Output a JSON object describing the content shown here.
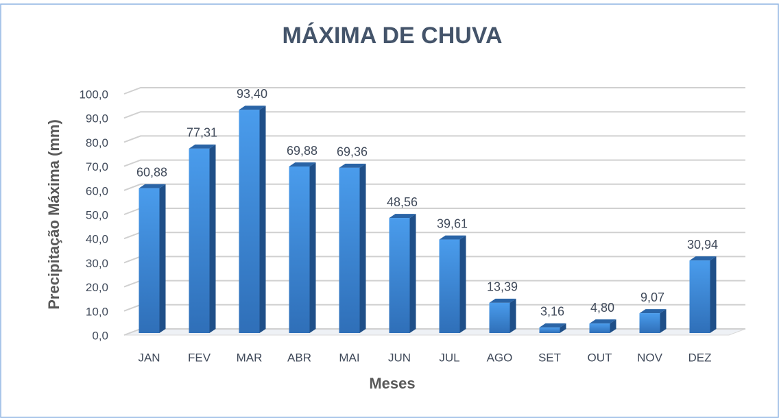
{
  "chart_data": {
    "type": "bar",
    "title": "MÁXIMA DE CHUVA",
    "x_label": "Meses",
    "y_label": "Precipitação Máxima (mm)",
    "categories": [
      "JAN",
      "FEV",
      "MAR",
      "ABR",
      "MAI",
      "JUN",
      "JUL",
      "AGO",
      "SET",
      "OUT",
      "NOV",
      "DEZ"
    ],
    "values": [
      60.88,
      77.31,
      93.4,
      69.88,
      69.36,
      48.56,
      39.61,
      13.39,
      3.16,
      4.8,
      9.07,
      30.94
    ],
    "value_labels": [
      "60,88",
      "77,31",
      "93,40",
      "69,88",
      "69,36",
      "48,56",
      "39,61",
      "13,39",
      "3,16",
      "4,80",
      "9,07",
      "30,94"
    ],
    "color": "#3a87d8",
    "ylim": [
      0,
      100
    ],
    "yticks": [
      {
        "value": 0,
        "label": "0,0"
      },
      {
        "value": 10,
        "label": "10,0"
      },
      {
        "value": 20,
        "label": "20,0"
      },
      {
        "value": 30,
        "label": "30,0"
      },
      {
        "value": 40,
        "label": "40,0"
      },
      {
        "value": 50,
        "label": "50,0"
      },
      {
        "value": 60,
        "label": "60,0"
      },
      {
        "value": 70,
        "label": "70,0"
      },
      {
        "value": 80,
        "label": "80,0"
      },
      {
        "value": 90,
        "label": "90,0"
      },
      {
        "value": 100,
        "label": "100,0"
      }
    ],
    "grid": true
  }
}
